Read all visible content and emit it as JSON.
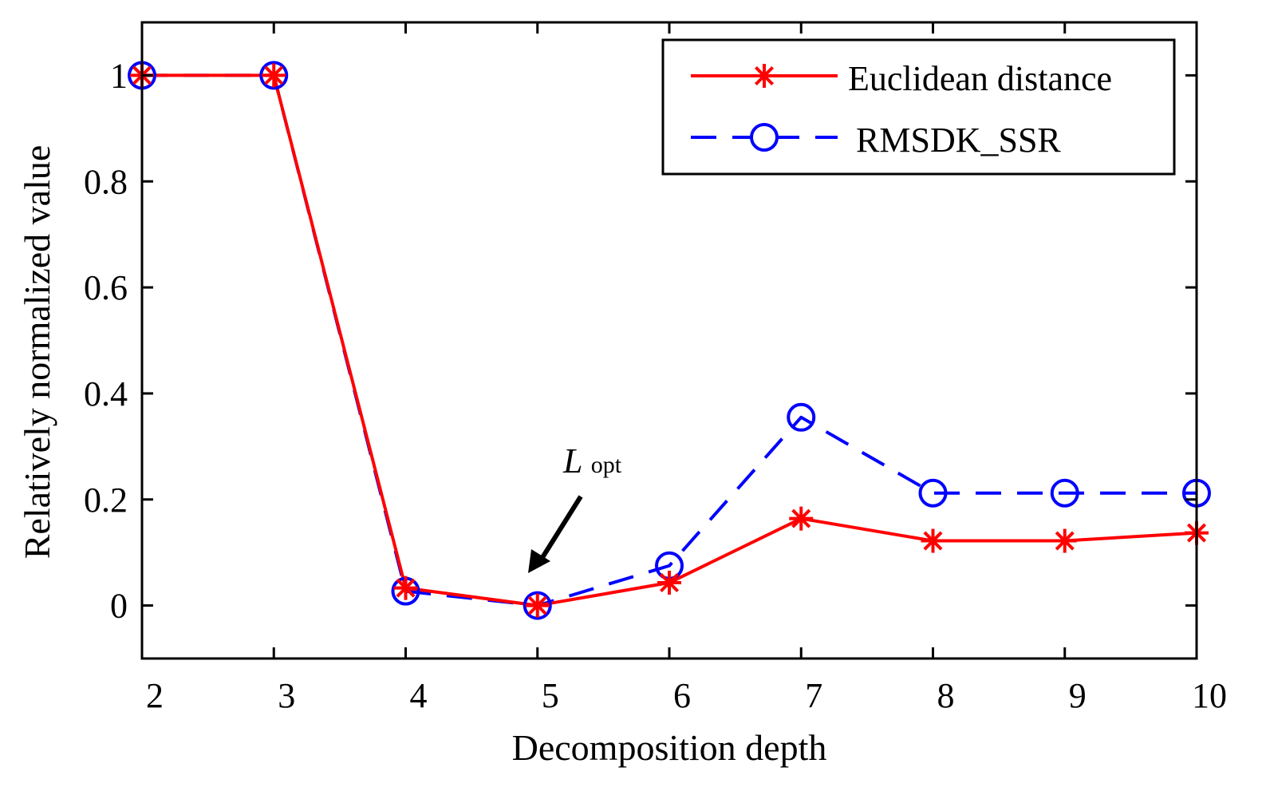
{
  "chart_data": {
    "type": "line",
    "title": "",
    "xlabel": "Decomposition depth",
    "ylabel": "Relatively normalized value",
    "x": [
      2,
      3,
      4,
      5,
      6,
      7,
      8,
      9,
      10
    ],
    "xlim": [
      2,
      10
    ],
    "ylim": [
      -0.1,
      1.1
    ],
    "xticks": [
      2,
      3,
      4,
      5,
      6,
      7,
      8,
      9,
      10
    ],
    "yticks": [
      0,
      0.2,
      0.4,
      0.6,
      0.8,
      1
    ],
    "ytick_labels": [
      "0",
      "0.2",
      "0.4",
      "0.6",
      "0.8",
      "1"
    ],
    "grid": false,
    "legend_position": "top-right",
    "series": [
      {
        "name": "Euclidean distance",
        "color": "#ff0000",
        "linestyle": "solid",
        "marker": "asterisk",
        "values": [
          1,
          1,
          0.033,
          0,
          0.043,
          0.164,
          0.122,
          0.122,
          0.137
        ]
      },
      {
        "name": "RMSDK_SSR",
        "color": "#0000ff",
        "linestyle": "dashed",
        "marker": "circle",
        "values": [
          1,
          1,
          0.027,
          0,
          0.075,
          0.355,
          0.212,
          0.212,
          0.212
        ]
      }
    ],
    "annotation": {
      "text_main": "L",
      "text_sub": "opt",
      "target_x": 5,
      "target_y": 0
    }
  }
}
